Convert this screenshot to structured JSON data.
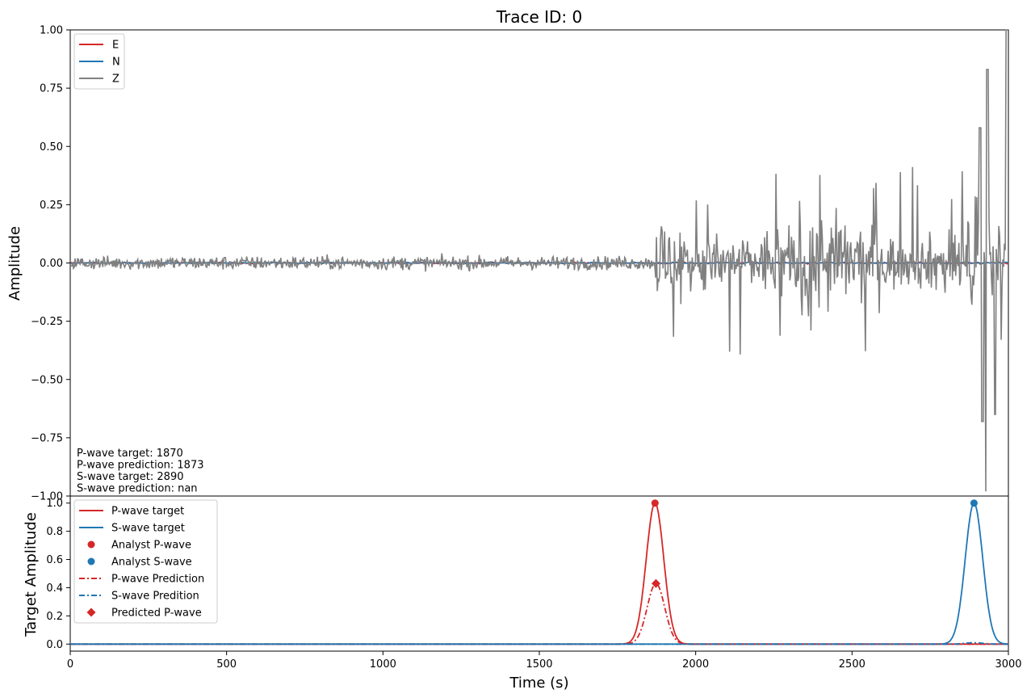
{
  "chart_data": [
    {
      "type": "line",
      "title": "Trace ID: 0",
      "xlabel": "",
      "ylabel": "Amplitude",
      "xlim": [
        0,
        3000
      ],
      "ylim": [
        -1.0,
        1.0
      ],
      "yticks": [
        1.0,
        0.75,
        0.5,
        0.25,
        0.0,
        -0.25,
        -0.5,
        -0.75,
        -1.0
      ],
      "ytick_labels": [
        "1.00",
        "0.75",
        "0.50",
        "0.25",
        "0.00",
        "−0.25",
        "−0.50",
        "−0.75",
        "−1.00"
      ],
      "legend_position": "top-left",
      "series": [
        {
          "name": "E",
          "color": "#d62728",
          "values": "flat near 0.00 across 0–3000"
        },
        {
          "name": "N",
          "color": "#1f77b4",
          "values": "flat near 0.00 across 0–3000"
        },
        {
          "name": "Z",
          "color": "#808080",
          "values": "noise ±0.08 before ~1870, then bursts up to ~0.47 / −0.38, reaching 0.83 and −0.98 near 2920–2940, 1.0 at 3000"
        }
      ],
      "annotations": [
        "P-wave target: 1870",
        "P-wave prediction: 1873",
        "S-wave target: 2890",
        "S-wave prediction: nan"
      ]
    },
    {
      "type": "line",
      "title": "",
      "xlabel": "Time (s)",
      "ylabel": "Target Amplitude",
      "xlim": [
        0,
        3000
      ],
      "ylim": [
        -0.05,
        1.05
      ],
      "xticks": [
        0,
        500,
        1000,
        1500,
        2000,
        2500,
        3000
      ],
      "xtick_labels": [
        "0",
        "500",
        "1000",
        "1500",
        "2000",
        "2500",
        "3000"
      ],
      "yticks": [
        0.0,
        0.2,
        0.4,
        0.6,
        0.8,
        1.0
      ],
      "ytick_labels": [
        "0.0",
        "0.2",
        "0.4",
        "0.6",
        "0.8",
        "1.0"
      ],
      "legend_position": "top-left",
      "series": [
        {
          "name": "P-wave target",
          "color": "#d62728",
          "style": "solid",
          "center": 1870,
          "peak": 1.0
        },
        {
          "name": "S-wave target",
          "color": "#1f77b4",
          "style": "solid",
          "center": 2890,
          "peak": 1.0
        },
        {
          "name": "Analyst P-wave",
          "color": "#d62728",
          "marker": "circle",
          "x": 1870,
          "y": 1.0
        },
        {
          "name": "Analyst S-wave",
          "color": "#1f77b4",
          "marker": "circle",
          "x": 2890,
          "y": 1.0
        },
        {
          "name": "P-wave Prediction",
          "color": "#d62728",
          "style": "dashdot",
          "center": 1873,
          "peak": 0.43
        },
        {
          "name": "S-wave Predition",
          "color": "#1f77b4",
          "style": "dashdot",
          "center": 2890,
          "peak": 0.01
        },
        {
          "name": "Predicted P-wave",
          "color": "#d62728",
          "marker": "diamond",
          "x": 1873,
          "y": 0.43
        }
      ]
    }
  ]
}
